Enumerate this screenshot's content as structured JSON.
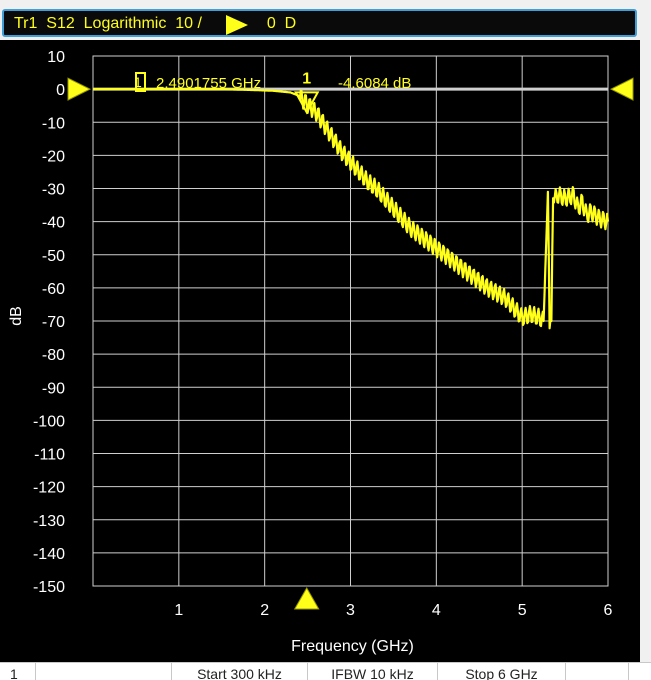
{
  "header": {
    "trace": "Tr1",
    "param": "S12",
    "format": "Logarithmic",
    "scale": "10 /",
    "ref_value": "0",
    "ref_unit": "D"
  },
  "colors": {
    "trace": "#ffff1a",
    "grid": "#cfcfcf",
    "ref_line": "#cfcfcf",
    "background": "#000000",
    "header_border": "#3f9fd6"
  },
  "marker": {
    "number": "1",
    "box_label": "1",
    "frequency": "2.4901755 GHz",
    "value": "-4.6084 dB",
    "x": 2.49,
    "y": -4.6
  },
  "status_bar": {
    "channel": "1",
    "start": "Start 300 kHz",
    "ifbw": "IFBW 10 kHz",
    "stop": "Stop 6 GHz"
  },
  "chart_data": {
    "type": "line",
    "xlabel": "Frequency (GHz)",
    "ylabel": "dB",
    "xlim": [
      0,
      6
    ],
    "ylim": [
      -150,
      10
    ],
    "xticks": [
      1,
      2,
      3,
      4,
      5,
      6
    ],
    "yticks": [
      10,
      0,
      -10,
      -20,
      -30,
      -40,
      -50,
      -60,
      -70,
      -80,
      -90,
      -100,
      -110,
      -120,
      -130,
      -140,
      -150
    ],
    "grid": true,
    "reference_level": 0,
    "series": [
      {
        "x": [
          0.0,
          0.5,
          1.0,
          1.5,
          1.9,
          2.1,
          2.3,
          2.4,
          2.5,
          2.6,
          2.7,
          2.8,
          2.9,
          3.0,
          3.1,
          3.2,
          3.3,
          3.4,
          3.5,
          3.6,
          3.7,
          3.8,
          3.9,
          4.0,
          4.2,
          4.4,
          4.6,
          4.8,
          4.9,
          5.0,
          5.1,
          5.2,
          5.25,
          5.3,
          5.32,
          5.34,
          5.36,
          5.38,
          5.42,
          5.5,
          5.6,
          5.65,
          5.7,
          5.75,
          5.8,
          5.9,
          6.0
        ],
        "values": [
          0,
          0,
          0,
          0,
          -0.3,
          -0.5,
          -1,
          -2,
          -4.6,
          -7,
          -11,
          -15,
          -19,
          -22,
          -25,
          -28,
          -30,
          -33,
          -36,
          -39,
          -42,
          -44,
          -46,
          -48,
          -52,
          -56,
          -60,
          -63,
          -66,
          -69,
          -68,
          -69,
          -70,
          -31,
          -70,
          -70,
          -31,
          -33,
          -32,
          -33,
          -32,
          -36,
          -34,
          -38,
          -37,
          -39,
          -40
        ]
      }
    ]
  }
}
